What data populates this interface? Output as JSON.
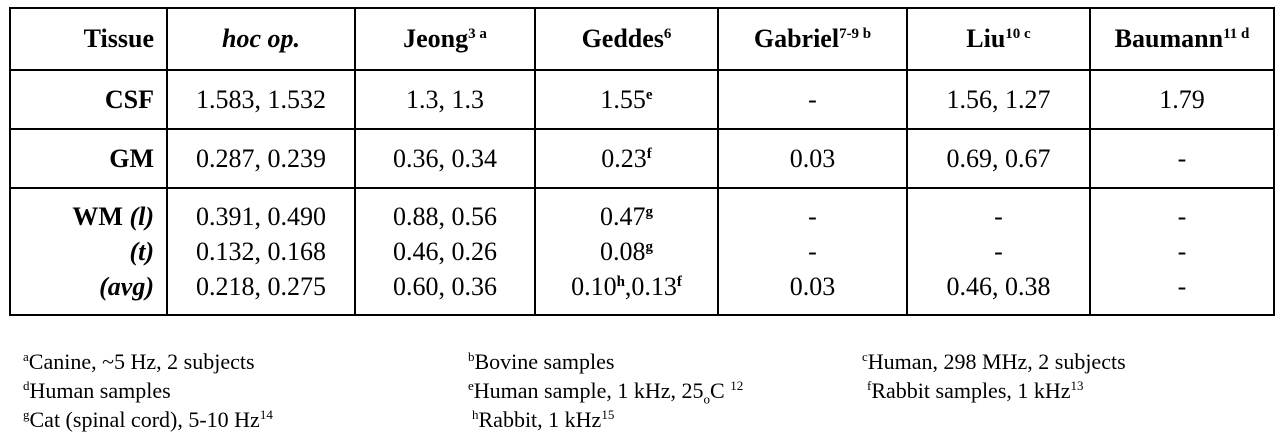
{
  "header": {
    "tissue": "Tissue",
    "hoc": "hoc op.",
    "jeong": "Jeong",
    "jeong_sup": "3 a",
    "geddes": "Geddes",
    "geddes_sup": "6",
    "gabriel": "Gabriel",
    "gabriel_sup": "7-9 b",
    "liu": "Liu",
    "liu_sup": "10 c",
    "baumann": "Baumann",
    "baumann_sup": "11 d"
  },
  "rows": {
    "csf": {
      "label": "CSF",
      "hoc": "1.583, 1.532",
      "jeong": "1.3, 1.3",
      "geddes": "1.55",
      "geddes_sup": "e",
      "gabriel": "-",
      "liu": "1.56, 1.27",
      "baumann": "1.79"
    },
    "gm": {
      "label": "GM",
      "hoc": "0.287, 0.239",
      "jeong": "0.36, 0.34",
      "geddes": "0.23",
      "geddes_sup": "f",
      "gabriel": "0.03",
      "liu": "0.69, 0.67",
      "baumann": "-"
    },
    "wm": {
      "label_wm": "WM",
      "label_l": "(l)",
      "label_t": "(t)",
      "label_avg": "(avg)",
      "hoc": [
        "0.391, 0.490",
        "0.132, 0.168",
        "0.218, 0.275"
      ],
      "jeong": [
        "0.88, 0.56",
        "0.46, 0.26",
        "0.60, 0.36"
      ],
      "geddes": {
        "l": "0.47",
        "l_sup": "g",
        "t": "0.08",
        "t_sup": "g",
        "avg1": "0.10",
        "avg1_sup": "h",
        "avg2": ",0.13",
        "avg2_sup": "f"
      },
      "gabriel": [
        "-",
        "-",
        "0.03"
      ],
      "liu": [
        "-",
        "-",
        "0.46, 0.38"
      ],
      "baumann": [
        "-",
        "-",
        "-"
      ]
    }
  },
  "footnotes": [
    {
      "mark": "a",
      "text": "Canine, ~5 Hz, 2 subjects"
    },
    {
      "mark": "b",
      "text": "Bovine samples"
    },
    {
      "mark": "c",
      "text": "Human, 298 MHz, 2 subjects"
    },
    {
      "mark": "d",
      "text": "Human samples"
    },
    {
      "mark": "e",
      "text": "Human sample, 1 kHz, 25",
      "mid_sup": "o",
      "tail": "C ",
      "tail_sup": "12"
    },
    {
      "mark": "f",
      "text": "Rabbit samples, 1 kHz",
      "tail_sup": "13"
    },
    {
      "mark": "g",
      "text": "Cat (spinal cord), 5-10 Hz",
      "tail_sup": "14"
    },
    {
      "mark": "h",
      "text": "Rabbit, 1 kHz",
      "tail_sup": "15"
    }
  ]
}
